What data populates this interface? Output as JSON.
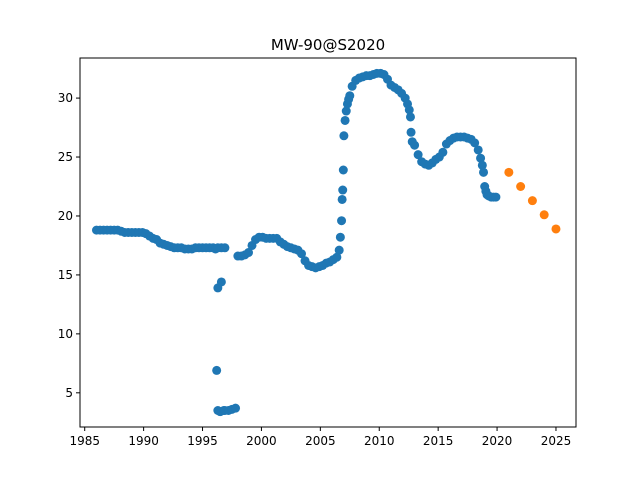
{
  "chart_data": {
    "type": "scatter",
    "title": "MW-90@S2020",
    "xlabel": "",
    "ylabel": "",
    "xlim": [
      1984.6,
      2026.7
    ],
    "ylim": [
      2.1,
      33.4
    ],
    "xticks": [
      1985,
      1990,
      1995,
      2000,
      2005,
      2010,
      2015,
      2020,
      2025
    ],
    "yticks": [
      5,
      10,
      15,
      20,
      25,
      30
    ],
    "grid": false,
    "legend": "none",
    "series": [
      {
        "color": "#1f77b4",
        "x": [
          1986.0,
          1986.3,
          1986.6,
          1986.9,
          1987.2,
          1987.5,
          1987.8,
          1988.1,
          1988.4,
          1988.7,
          1989.0,
          1989.3,
          1989.6,
          1989.9,
          1990.2,
          1990.5,
          1990.8,
          1991.1,
          1991.4,
          1991.7,
          1992.0,
          1992.3,
          1992.6,
          1992.9,
          1993.2,
          1993.5,
          1993.8,
          1994.1,
          1994.4,
          1994.7,
          1995.0,
          1995.3,
          1995.6,
          1995.9,
          1996.1,
          1996.3,
          1996.6,
          1996.9,
          1996.2,
          1996.3,
          1996.5,
          1996.8,
          1996.3,
          1996.6,
          1996.9,
          1997.2,
          1997.5,
          1997.8,
          1998.0,
          1998.3,
          1998.6,
          1998.9,
          1999.2,
          1999.5,
          1999.8,
          2000.1,
          2000.4,
          2000.7,
          2001.0,
          2001.3,
          2001.6,
          2001.9,
          2002.2,
          2002.5,
          2002.8,
          2003.1,
          2003.4,
          2003.7,
          2004.0,
          2004.3,
          2004.6,
          2004.9,
          2005.2,
          2005.5,
          2005.8,
          2006.1,
          2006.4,
          2006.6,
          2006.7,
          2006.8,
          2006.85,
          2006.9,
          2006.95,
          2007.0,
          2007.1,
          2007.2,
          2007.3,
          2007.4,
          2007.5,
          2007.7,
          2008.0,
          2008.3,
          2008.6,
          2008.9,
          2009.2,
          2009.5,
          2009.8,
          2010.1,
          2010.4,
          2010.7,
          2011.0,
          2011.3,
          2011.6,
          2011.9,
          2012.2,
          2012.4,
          2012.55,
          2012.65,
          2012.7,
          2012.8,
          2013.0,
          2013.3,
          2013.6,
          2013.9,
          2014.2,
          2014.5,
          2014.8,
          2015.1,
          2015.4,
          2015.7,
          2016.0,
          2016.3,
          2016.6,
          2016.9,
          2017.2,
          2017.5,
          2017.8,
          2018.1,
          2018.4,
          2018.6,
          2018.75,
          2018.85,
          2018.95,
          2019.05,
          2019.15,
          2019.3,
          2019.5,
          2019.7,
          2019.9
        ],
        "y": [
          18.8,
          18.8,
          18.8,
          18.8,
          18.8,
          18.8,
          18.8,
          18.7,
          18.6,
          18.6,
          18.6,
          18.6,
          18.6,
          18.6,
          18.5,
          18.3,
          18.1,
          18.0,
          17.7,
          17.6,
          17.5,
          17.4,
          17.3,
          17.3,
          17.3,
          17.2,
          17.2,
          17.2,
          17.3,
          17.3,
          17.3,
          17.3,
          17.3,
          17.3,
          17.2,
          17.3,
          17.3,
          17.3,
          6.9,
          3.5,
          3.4,
          3.5,
          13.9,
          14.4,
          3.5,
          3.5,
          3.6,
          3.7,
          16.6,
          16.6,
          16.7,
          16.9,
          17.5,
          18.0,
          18.2,
          18.2,
          18.1,
          18.1,
          18.1,
          18.1,
          17.8,
          17.6,
          17.4,
          17.3,
          17.2,
          17.1,
          16.8,
          16.2,
          15.8,
          15.7,
          15.6,
          15.7,
          15.8,
          16.0,
          16.1,
          16.3,
          16.5,
          17.1,
          18.2,
          19.6,
          21.4,
          22.2,
          23.9,
          26.8,
          28.1,
          28.9,
          29.5,
          29.9,
          30.2,
          31.0,
          31.5,
          31.7,
          31.8,
          31.9,
          31.9,
          32.0,
          32.1,
          32.1,
          32.0,
          31.6,
          31.1,
          30.9,
          30.7,
          30.4,
          30.0,
          29.5,
          29.0,
          28.4,
          27.1,
          26.3,
          26.0,
          25.2,
          24.6,
          24.4,
          24.3,
          24.5,
          24.8,
          25.0,
          25.4,
          26.1,
          26.4,
          26.6,
          26.7,
          26.7,
          26.7,
          26.6,
          26.5,
          26.2,
          25.6,
          24.9,
          24.3,
          23.7,
          22.5,
          22.1,
          21.8,
          21.7,
          21.6,
          21.6,
          21.6
        ]
      },
      {
        "color": "#ff7f0e",
        "x": [
          2021,
          2022,
          2023,
          2024,
          2025
        ],
        "y": [
          23.7,
          22.5,
          21.3,
          20.1,
          18.9
        ]
      }
    ]
  }
}
